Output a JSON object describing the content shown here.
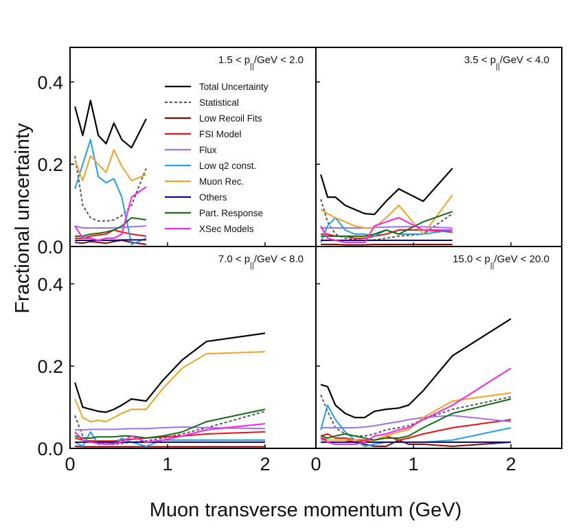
{
  "figure": {
    "ylabel": "Fractional uncertainty",
    "xlabel": "Muon transverse momentum (GeV)"
  },
  "colors": {
    "Total Uncertainty": "#000000",
    "Statistical": "#555555",
    "Low Recoil Fits": "#8b0000",
    "FSI Model": "#ee1111",
    "Flux": "#a070ee",
    "Low q2 const.": "#1e9ef0",
    "Muon Rec.": "#f5a020",
    "Others": "#0a0a90",
    "Part. Response": "#0f6e0f",
    "XSec Models": "#ff1cf0"
  },
  "legend": [
    "Total Uncertainty",
    "Statistical",
    "Low Recoil Fits",
    "FSI Model",
    "Flux",
    "Low q2 const.",
    "Muon Rec.",
    "Others",
    "Part. Response",
    "XSec Models"
  ],
  "chart_data": [
    {
      "type": "line",
      "panel": "top-left",
      "label_main": "1.5 < p",
      "label_sub": "||",
      "label_rest": "/GeV < 2.0",
      "xlim": [
        0,
        2.5
      ],
      "ylim": [
        0,
        0.49
      ],
      "yticks": [
        "0.0",
        "0.2",
        "0.4"
      ],
      "x": [
        0.05,
        0.13,
        0.21,
        0.29,
        0.37,
        0.45,
        0.53,
        0.63,
        0.78
      ],
      "series": [
        {
          "name": "Total Uncertainty",
          "values": [
            0.34,
            0.27,
            0.355,
            0.27,
            0.25,
            0.3,
            0.26,
            0.24,
            0.31
          ]
        },
        {
          "name": "Statistical",
          "values": [
            0.22,
            0.1,
            0.07,
            0.062,
            0.062,
            0.065,
            0.075,
            0.1,
            0.19
          ]
        },
        {
          "name": "Low Recoil Fits",
          "values": [
            0.01,
            0.008,
            0.012,
            0.01,
            0.008,
            0.012,
            0.015,
            0.01,
            0.005
          ]
        },
        {
          "name": "FSI Model",
          "values": [
            0.02,
            0.02,
            0.025,
            0.028,
            0.03,
            0.04,
            0.035,
            0.03,
            0.025
          ]
        },
        {
          "name": "Flux",
          "values": [
            0.05,
            0.045,
            0.045,
            0.045,
            0.045,
            0.045,
            0.046,
            0.048,
            0.05
          ]
        },
        {
          "name": "Low q2 const.",
          "values": [
            0.14,
            0.2,
            0.26,
            0.17,
            0.155,
            0.165,
            0.12,
            0.005,
            0.02
          ]
        },
        {
          "name": "Muon Rec.",
          "values": [
            0.21,
            0.16,
            0.22,
            0.2,
            0.18,
            0.235,
            0.195,
            0.16,
            0.175
          ]
        },
        {
          "name": "Others",
          "values": [
            0.015,
            0.015,
            0.015,
            0.015,
            0.015,
            0.015,
            0.016,
            0.016,
            0.016
          ]
        },
        {
          "name": "Part. Response",
          "values": [
            0.025,
            0.025,
            0.03,
            0.032,
            0.035,
            0.04,
            0.05,
            0.07,
            0.065
          ]
        },
        {
          "name": "XSec Models",
          "values": [
            0.05,
            0.02,
            0.02,
            0.015,
            0.02,
            0.02,
            0.03,
            0.12,
            0.145
          ]
        }
      ]
    },
    {
      "type": "line",
      "panel": "top-right",
      "label_main": "3.5 < p",
      "label_sub": "||",
      "label_rest": "/GeV < 4.0",
      "xlim": [
        0,
        2.5
      ],
      "ylim": [
        0,
        0.49
      ],
      "yticks": [],
      "x": [
        0.05,
        0.12,
        0.2,
        0.3,
        0.4,
        0.5,
        0.6,
        0.72,
        0.85,
        1.1,
        1.4
      ],
      "series": [
        {
          "name": "Total Uncertainty",
          "values": [
            0.175,
            0.12,
            0.12,
            0.1,
            0.09,
            0.08,
            0.078,
            0.11,
            0.14,
            0.11,
            0.19
          ]
        },
        {
          "name": "Statistical",
          "values": [
            0.115,
            0.06,
            0.03,
            0.02,
            0.017,
            0.015,
            0.016,
            0.02,
            0.025,
            0.03,
            0.08
          ]
        },
        {
          "name": "Low Recoil Fits",
          "values": [
            0.005,
            0.005,
            0.005,
            0.004,
            0.004,
            0.004,
            0.005,
            0.005,
            0.005,
            0.005,
            0.005
          ]
        },
        {
          "name": "FSI Model",
          "values": [
            0.03,
            0.03,
            0.025,
            0.025,
            0.02,
            0.02,
            0.025,
            0.03,
            0.04,
            0.04,
            0.035
          ]
        },
        {
          "name": "Flux",
          "values": [
            0.045,
            0.045,
            0.045,
            0.045,
            0.045,
            0.045,
            0.046,
            0.047,
            0.048,
            0.048,
            0.045
          ]
        },
        {
          "name": "Low q2 const.",
          "values": [
            0.01,
            0.05,
            0.07,
            0.04,
            0.03,
            0.03,
            0.025,
            0.04,
            0.03,
            0.03,
            0.04
          ]
        },
        {
          "name": "Muon Rec.",
          "values": [
            0.09,
            0.08,
            0.07,
            0.06,
            0.05,
            0.045,
            0.045,
            0.07,
            0.1,
            0.03,
            0.125
          ]
        },
        {
          "name": "Others",
          "values": [
            0.015,
            0.015,
            0.015,
            0.015,
            0.015,
            0.015,
            0.015,
            0.015,
            0.015,
            0.015,
            0.015
          ]
        },
        {
          "name": "Part. Response",
          "values": [
            0.025,
            0.025,
            0.025,
            0.025,
            0.025,
            0.025,
            0.03,
            0.04,
            0.03,
            0.06,
            0.085
          ]
        },
        {
          "name": "XSec Models",
          "values": [
            0.05,
            0.02,
            0.015,
            0.01,
            0.01,
            0.01,
            0.05,
            0.06,
            0.07,
            0.04,
            0.04
          ]
        }
      ]
    },
    {
      "type": "line",
      "panel": "bottom-left",
      "label_main": "7.0 < p",
      "label_sub": "||",
      "label_rest": "/GeV < 8.0",
      "xlim": [
        0,
        2.5
      ],
      "ylim": [
        0,
        0.49
      ],
      "yticks": [
        "0.0",
        "0.2",
        "0.4"
      ],
      "xticks": [
        "0",
        "1",
        "2"
      ],
      "x": [
        0.05,
        0.13,
        0.21,
        0.29,
        0.37,
        0.45,
        0.53,
        0.63,
        0.78,
        0.95,
        1.15,
        1.4,
        2.0
      ],
      "series": [
        {
          "name": "Total Uncertainty",
          "values": [
            0.16,
            0.1,
            0.095,
            0.09,
            0.088,
            0.095,
            0.105,
            0.12,
            0.115,
            0.165,
            0.215,
            0.26,
            0.28
          ]
        },
        {
          "name": "Statistical",
          "values": [
            0.08,
            0.03,
            0.015,
            0.012,
            0.01,
            0.01,
            0.012,
            0.015,
            0.018,
            0.025,
            0.035,
            0.05,
            0.09
          ]
        },
        {
          "name": "Low Recoil Fits",
          "values": [
            0.005,
            0.004,
            0.004,
            0.004,
            0.004,
            0.004,
            0.004,
            0.004,
            0.004,
            0.004,
            0.004,
            0.004,
            0.004
          ]
        },
        {
          "name": "FSI Model",
          "values": [
            0.025,
            0.02,
            0.018,
            0.018,
            0.018,
            0.018,
            0.02,
            0.022,
            0.025,
            0.028,
            0.03,
            0.035,
            0.04
          ]
        },
        {
          "name": "Flux",
          "values": [
            0.045,
            0.045,
            0.046,
            0.046,
            0.046,
            0.046,
            0.047,
            0.048,
            0.048,
            0.05,
            0.052,
            0.05,
            0.048
          ]
        },
        {
          "name": "Low q2 const.",
          "values": [
            0.015,
            0.005,
            0.04,
            0.01,
            0.015,
            0.01,
            0.025,
            0.015,
            0.005,
            0.02,
            0.02,
            0.02,
            0.02
          ]
        },
        {
          "name": "Muon Rec.",
          "values": [
            0.12,
            0.075,
            0.065,
            0.068,
            0.065,
            0.075,
            0.085,
            0.095,
            0.095,
            0.145,
            0.195,
            0.23,
            0.235
          ]
        },
        {
          "name": "Others",
          "values": [
            0.015,
            0.015,
            0.015,
            0.015,
            0.015,
            0.015,
            0.015,
            0.015,
            0.015,
            0.015,
            0.015,
            0.015,
            0.015
          ]
        },
        {
          "name": "Part. Response",
          "values": [
            0.03,
            0.025,
            0.025,
            0.028,
            0.028,
            0.028,
            0.03,
            0.03,
            0.025,
            0.03,
            0.04,
            0.065,
            0.095
          ]
        },
        {
          "name": "XSec Models",
          "values": [
            0.04,
            0.02,
            0.015,
            0.012,
            0.01,
            0.012,
            0.015,
            0.03,
            0.015,
            0.02,
            0.03,
            0.045,
            0.06
          ]
        }
      ]
    },
    {
      "type": "line",
      "panel": "bottom-right",
      "label_main": "15.0 < p",
      "label_sub": "||",
      "label_rest": "/GeV < 20.0",
      "xlim": [
        0,
        2.5
      ],
      "ylim": [
        0,
        0.49
      ],
      "yticks": [],
      "xticks": [
        "0",
        "1",
        "2"
      ],
      "x": [
        0.05,
        0.12,
        0.2,
        0.3,
        0.4,
        0.5,
        0.6,
        0.72,
        0.85,
        0.95,
        1.1,
        1.4,
        2.0
      ],
      "series": [
        {
          "name": "Total Uncertainty",
          "values": [
            0.155,
            0.15,
            0.105,
            0.085,
            0.075,
            0.075,
            0.09,
            0.095,
            0.098,
            0.105,
            0.14,
            0.225,
            0.315
          ]
        },
        {
          "name": "Statistical",
          "values": [
            0.13,
            0.09,
            0.05,
            0.035,
            0.03,
            0.03,
            0.035,
            0.045,
            0.05,
            0.055,
            0.07,
            0.095,
            0.125
          ]
        },
        {
          "name": "Low Recoil Fits",
          "values": [
            0.025,
            0.02,
            0.02,
            0.02,
            0.015,
            0.01,
            0.005,
            0.005,
            0.02,
            0.01,
            0.01,
            0.005,
            0.015
          ]
        },
        {
          "name": "FSI Model",
          "values": [
            0.03,
            0.035,
            0.025,
            0.025,
            0.02,
            0.02,
            0.02,
            0.03,
            0.02,
            0.025,
            0.035,
            0.05,
            0.07
          ]
        },
        {
          "name": "Flux",
          "values": [
            0.05,
            0.05,
            0.05,
            0.05,
            0.05,
            0.052,
            0.055,
            0.06,
            0.065,
            0.07,
            0.075,
            0.08,
            0.065
          ]
        },
        {
          "name": "Low q2 const.",
          "values": [
            0.045,
            0.105,
            0.07,
            0.04,
            0.02,
            0.005,
            0.01,
            0.015,
            0.015,
            0.015,
            0.015,
            0.02,
            0.05
          ]
        },
        {
          "name": "Muon Rec.",
          "values": [
            0.02,
            0.02,
            0.02,
            0.02,
            0.02,
            0.015,
            0.02,
            0.03,
            0.04,
            0.045,
            0.075,
            0.115,
            0.135
          ]
        },
        {
          "name": "Others",
          "values": [
            0.015,
            0.015,
            0.015,
            0.015,
            0.015,
            0.015,
            0.015,
            0.015,
            0.015,
            0.015,
            0.015,
            0.015,
            0.015
          ]
        },
        {
          "name": "Part. Response",
          "values": [
            0.03,
            0.025,
            0.03,
            0.035,
            0.03,
            0.025,
            0.02,
            0.025,
            0.025,
            0.03,
            0.05,
            0.085,
            0.12
          ]
        },
        {
          "name": "XSec Models",
          "values": [
            0.025,
            0.015,
            0.01,
            0.01,
            0.01,
            0.015,
            0.03,
            0.035,
            0.045,
            0.05,
            0.07,
            0.105,
            0.195
          ]
        }
      ]
    }
  ]
}
